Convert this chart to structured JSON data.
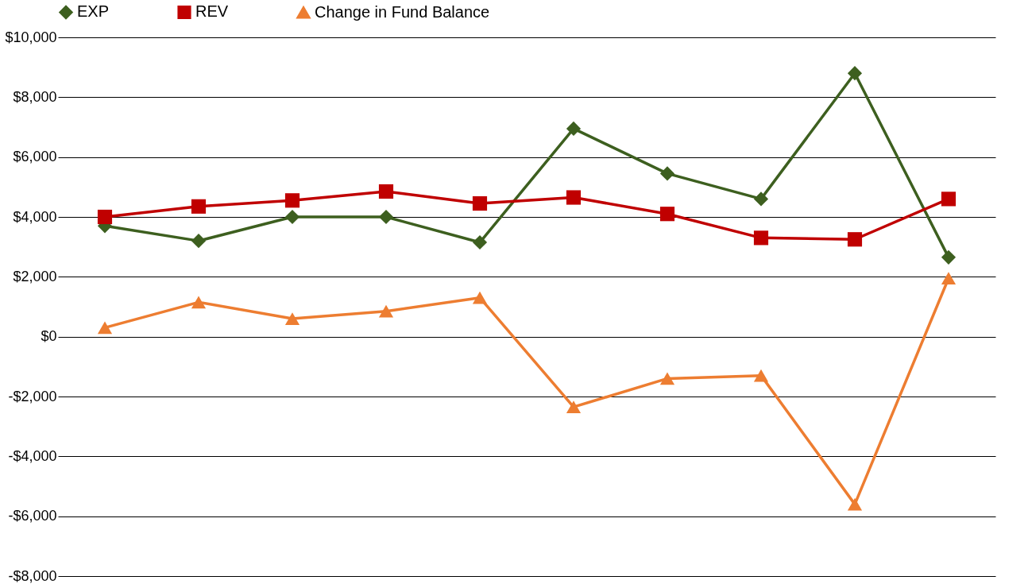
{
  "chart_data": {
    "type": "line",
    "categories": [
      null,
      null,
      null,
      null,
      null,
      null,
      null,
      null,
      null,
      null
    ],
    "series": [
      {
        "name": "EXP",
        "color": "#3d5f1f",
        "marker": "diamond",
        "values": [
          3700,
          3200,
          4000,
          4000,
          3150,
          6950,
          5450,
          4600,
          8800,
          2650
        ]
      },
      {
        "name": "REV",
        "color": "#c00000",
        "marker": "square",
        "values": [
          4000,
          4350,
          4550,
          4850,
          4450,
          4650,
          4100,
          3300,
          3250,
          4600
        ]
      },
      {
        "name": "Change in Fund Balance",
        "color": "#ed7d31",
        "marker": "triangle",
        "values": [
          300,
          1150,
          600,
          850,
          1300,
          -2350,
          -1400,
          -1300,
          -5600,
          1950
        ]
      }
    ],
    "ylim": [
      -8000,
      10000
    ],
    "yticks": [
      {
        "value": -8000,
        "label": "-$8,000"
      },
      {
        "value": -6000,
        "label": "-$6,000"
      },
      {
        "value": -4000,
        "label": "-$4,000"
      },
      {
        "value": -2000,
        "label": "-$2,000"
      },
      {
        "value": 0,
        "label": "$0"
      },
      {
        "value": 2000,
        "label": "$2,000"
      },
      {
        "value": 4000,
        "label": "$4,000"
      },
      {
        "value": 6000,
        "label": "$6,000"
      },
      {
        "value": 8000,
        "label": "$8,000"
      },
      {
        "value": 10000,
        "label": "$10,000"
      }
    ],
    "grid": "y",
    "legend": "top",
    "line_style": "solid",
    "tick_labels": "y"
  }
}
